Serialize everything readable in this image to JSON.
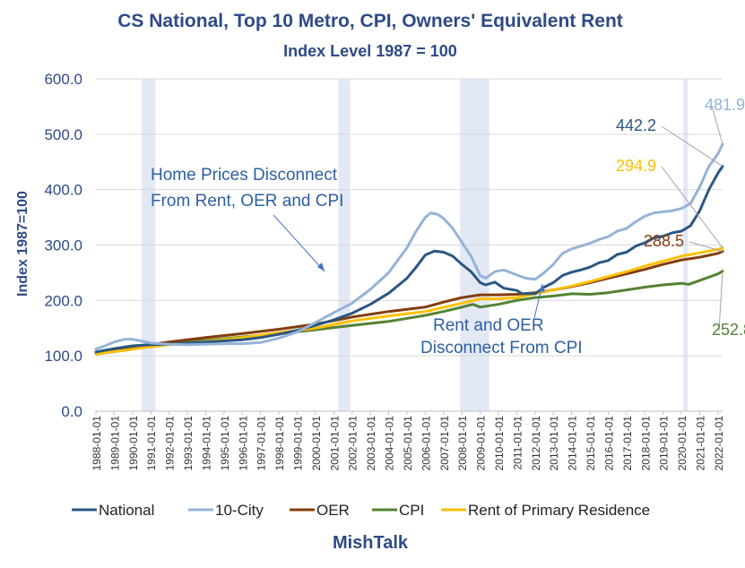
{
  "chart_data": {
    "type": "line",
    "title": "CS National, Top 10 Metro, CPI, Owners' Equivalent Rent",
    "subtitle": "Index Level 1987 = 100",
    "ylabel": "Index 1987=100",
    "xlabel": "",
    "ylim": [
      0,
      600
    ],
    "yticks": [
      "0.0",
      "100.0",
      "200.0",
      "300.0",
      "400.0",
      "500.0",
      "600.0"
    ],
    "xlim": [
      1988,
      2022.25
    ],
    "x_tick_labels": [
      "1988-01-01",
      "1989-01-01",
      "1990-01-01",
      "1991-01-01",
      "1992-01-01",
      "1993-01-01",
      "1994-01-01",
      "1995-01-01",
      "1996-01-01",
      "1997-01-01",
      "1998-01-01",
      "1999-01-01",
      "2000-01-01",
      "2001-01-01",
      "2002-01-01",
      "2003-01-01",
      "2004-01-01",
      "2005-01-01",
      "2006-01-01",
      "2007-01-01",
      "2008-01-01",
      "2009-01-01",
      "2010-01-01",
      "2011-01-01",
      "2012-01-01",
      "2013-01-01",
      "2014-01-01",
      "2015-01-01",
      "2016-01-01",
      "2017-01-01",
      "2018-01-01",
      "2019-01-01",
      "2020-01-01",
      "2021-01-01",
      "2022-01-01"
    ],
    "recessions": [
      [
        1990.5,
        1991.25
      ],
      [
        2001.25,
        2001.9
      ],
      [
        2007.9,
        2009.5
      ],
      [
        2020.1,
        2020.35
      ]
    ],
    "grid": "horizontal",
    "legend_position": "bottom",
    "series": [
      {
        "name": "National",
        "color": "#2a5783",
        "end_label": "442.2",
        "points": [
          [
            1988,
            107
          ],
          [
            1989,
            113
          ],
          [
            1990,
            118
          ],
          [
            1991,
            120
          ],
          [
            1992,
            121
          ],
          [
            1993,
            123
          ],
          [
            1994,
            125
          ],
          [
            1995,
            127
          ],
          [
            1996,
            129
          ],
          [
            1997,
            133
          ],
          [
            1998,
            139
          ],
          [
            1999,
            146
          ],
          [
            2000,
            155
          ],
          [
            2001,
            165
          ],
          [
            2002,
            177
          ],
          [
            2003,
            193
          ],
          [
            2004,
            213
          ],
          [
            2005,
            240
          ],
          [
            2005.5,
            260
          ],
          [
            2006,
            282
          ],
          [
            2006.5,
            289
          ],
          [
            2007,
            287
          ],
          [
            2007.5,
            280
          ],
          [
            2008,
            265
          ],
          [
            2008.5,
            252
          ],
          [
            2009,
            232
          ],
          [
            2009.3,
            228
          ],
          [
            2009.8,
            233
          ],
          [
            2010.3,
            222
          ],
          [
            2011,
            218
          ],
          [
            2011.3,
            212
          ],
          [
            2012,
            212
          ],
          [
            2012.5,
            224
          ],
          [
            2013,
            232
          ],
          [
            2013.5,
            245
          ],
          [
            2014,
            251
          ],
          [
            2014.5,
            255
          ],
          [
            2015,
            260
          ],
          [
            2015.5,
            268
          ],
          [
            2016,
            272
          ],
          [
            2016.5,
            283
          ],
          [
            2017,
            287
          ],
          [
            2017.5,
            298
          ],
          [
            2018,
            304
          ],
          [
            2018.5,
            313
          ],
          [
            2019,
            316
          ],
          [
            2019.5,
            322
          ],
          [
            2020,
            325
          ],
          [
            2020.5,
            335
          ],
          [
            2021,
            362
          ],
          [
            2021.5,
            400
          ],
          [
            2022,
            430
          ],
          [
            2022.25,
            442.2
          ]
        ]
      },
      {
        "name": "10-City",
        "color": "#95b3d7",
        "end_label": "481.9",
        "points": [
          [
            1988,
            112
          ],
          [
            1988.5,
            118
          ],
          [
            1989,
            125
          ],
          [
            1989.6,
            130
          ],
          [
            1990,
            130
          ],
          [
            1990.6,
            126
          ],
          [
            1991,
            123
          ],
          [
            1992,
            121
          ],
          [
            1993,
            120
          ],
          [
            1994,
            121
          ],
          [
            1995,
            122
          ],
          [
            1996,
            122
          ],
          [
            1997,
            124
          ],
          [
            1998,
            132
          ],
          [
            1999,
            143
          ],
          [
            2000,
            160
          ],
          [
            2001,
            178
          ],
          [
            2002,
            195
          ],
          [
            2003,
            220
          ],
          [
            2004,
            250
          ],
          [
            2005,
            295
          ],
          [
            2005.5,
            325
          ],
          [
            2006,
            350
          ],
          [
            2006.3,
            358
          ],
          [
            2006.7,
            355
          ],
          [
            2007,
            348
          ],
          [
            2007.5,
            330
          ],
          [
            2008,
            305
          ],
          [
            2008.5,
            280
          ],
          [
            2009,
            245
          ],
          [
            2009.3,
            240
          ],
          [
            2009.8,
            252
          ],
          [
            2010.3,
            255
          ],
          [
            2011,
            246
          ],
          [
            2011.5,
            240
          ],
          [
            2012,
            238
          ],
          [
            2012.5,
            250
          ],
          [
            2013,
            265
          ],
          [
            2013.5,
            285
          ],
          [
            2014,
            293
          ],
          [
            2014.5,
            298
          ],
          [
            2015,
            303
          ],
          [
            2015.5,
            310
          ],
          [
            2016,
            315
          ],
          [
            2016.5,
            325
          ],
          [
            2017,
            330
          ],
          [
            2017.5,
            342
          ],
          [
            2018,
            352
          ],
          [
            2018.5,
            358
          ],
          [
            2019,
            360
          ],
          [
            2019.5,
            362
          ],
          [
            2020,
            366
          ],
          [
            2020.5,
            375
          ],
          [
            2021,
            405
          ],
          [
            2021.5,
            442
          ],
          [
            2022,
            465
          ],
          [
            2022.25,
            481.9
          ]
        ]
      },
      {
        "name": "OER",
        "color": "#843c0c",
        "end_label": "288.5",
        "points": [
          [
            1988,
            104
          ],
          [
            1990,
            116
          ],
          [
            1992,
            125
          ],
          [
            1994,
            133
          ],
          [
            1996,
            140
          ],
          [
            1998,
            148
          ],
          [
            2000,
            157
          ],
          [
            2002,
            170
          ],
          [
            2004,
            180
          ],
          [
            2006,
            188
          ],
          [
            2007,
            197
          ],
          [
            2008,
            205
          ],
          [
            2009,
            210
          ],
          [
            2010,
            210
          ],
          [
            2011,
            211
          ],
          [
            2012,
            214
          ],
          [
            2013,
            219
          ],
          [
            2014,
            225
          ],
          [
            2015,
            232
          ],
          [
            2016,
            240
          ],
          [
            2017,
            248
          ],
          [
            2018,
            256
          ],
          [
            2019,
            265
          ],
          [
            2020,
            273
          ],
          [
            2021,
            278
          ],
          [
            2022,
            285
          ],
          [
            2022.25,
            288.5
          ]
        ]
      },
      {
        "name": "CPI",
        "color": "#548235",
        "end_label": "252.8",
        "points": [
          [
            1988,
            103
          ],
          [
            1990,
            112
          ],
          [
            1992,
            122
          ],
          [
            1994,
            128
          ],
          [
            1996,
            134
          ],
          [
            1998,
            140
          ],
          [
            2000,
            147
          ],
          [
            2002,
            155
          ],
          [
            2004,
            162
          ],
          [
            2006,
            173
          ],
          [
            2007,
            180
          ],
          [
            2008,
            188
          ],
          [
            2008.6,
            193
          ],
          [
            2009,
            188
          ],
          [
            2010,
            193
          ],
          [
            2011,
            200
          ],
          [
            2012,
            205
          ],
          [
            2013,
            208
          ],
          [
            2014,
            212
          ],
          [
            2015,
            211
          ],
          [
            2016,
            214
          ],
          [
            2017,
            219
          ],
          [
            2018,
            224
          ],
          [
            2019,
            228
          ],
          [
            2020,
            231
          ],
          [
            2020.4,
            229
          ],
          [
            2021,
            236
          ],
          [
            2021.5,
            242
          ],
          [
            2022,
            248
          ],
          [
            2022.25,
            252.8
          ]
        ]
      },
      {
        "name": "Rent of Primary Residence",
        "color": "#ffc000",
        "end_label": "294.9",
        "points": [
          [
            1988,
            103
          ],
          [
            1990,
            112
          ],
          [
            1992,
            120
          ],
          [
            1994,
            126
          ],
          [
            1996,
            133
          ],
          [
            1998,
            142
          ],
          [
            2000,
            150
          ],
          [
            2002,
            163
          ],
          [
            2004,
            172
          ],
          [
            2006,
            180
          ],
          [
            2008,
            195
          ],
          [
            2009,
            203
          ],
          [
            2010,
            203
          ],
          [
            2011,
            205
          ],
          [
            2012,
            212
          ],
          [
            2013,
            219
          ],
          [
            2014,
            226
          ],
          [
            2015,
            234
          ],
          [
            2016,
            243
          ],
          [
            2017,
            252
          ],
          [
            2018,
            262
          ],
          [
            2019,
            271
          ],
          [
            2020,
            280
          ],
          [
            2021,
            286
          ],
          [
            2022,
            292
          ],
          [
            2022.25,
            294.9
          ]
        ]
      }
    ],
    "annotations": [
      {
        "text": "Home Prices Disconnect",
        "text2": "From Rent, OER and CPI",
        "color": "#2e5fa3"
      },
      {
        "text": "Rent and OER",
        "text2": "Disconnect From CPI",
        "color": "#2e5fa3"
      }
    ]
  },
  "footer": {
    "brand": "MishTalk"
  }
}
